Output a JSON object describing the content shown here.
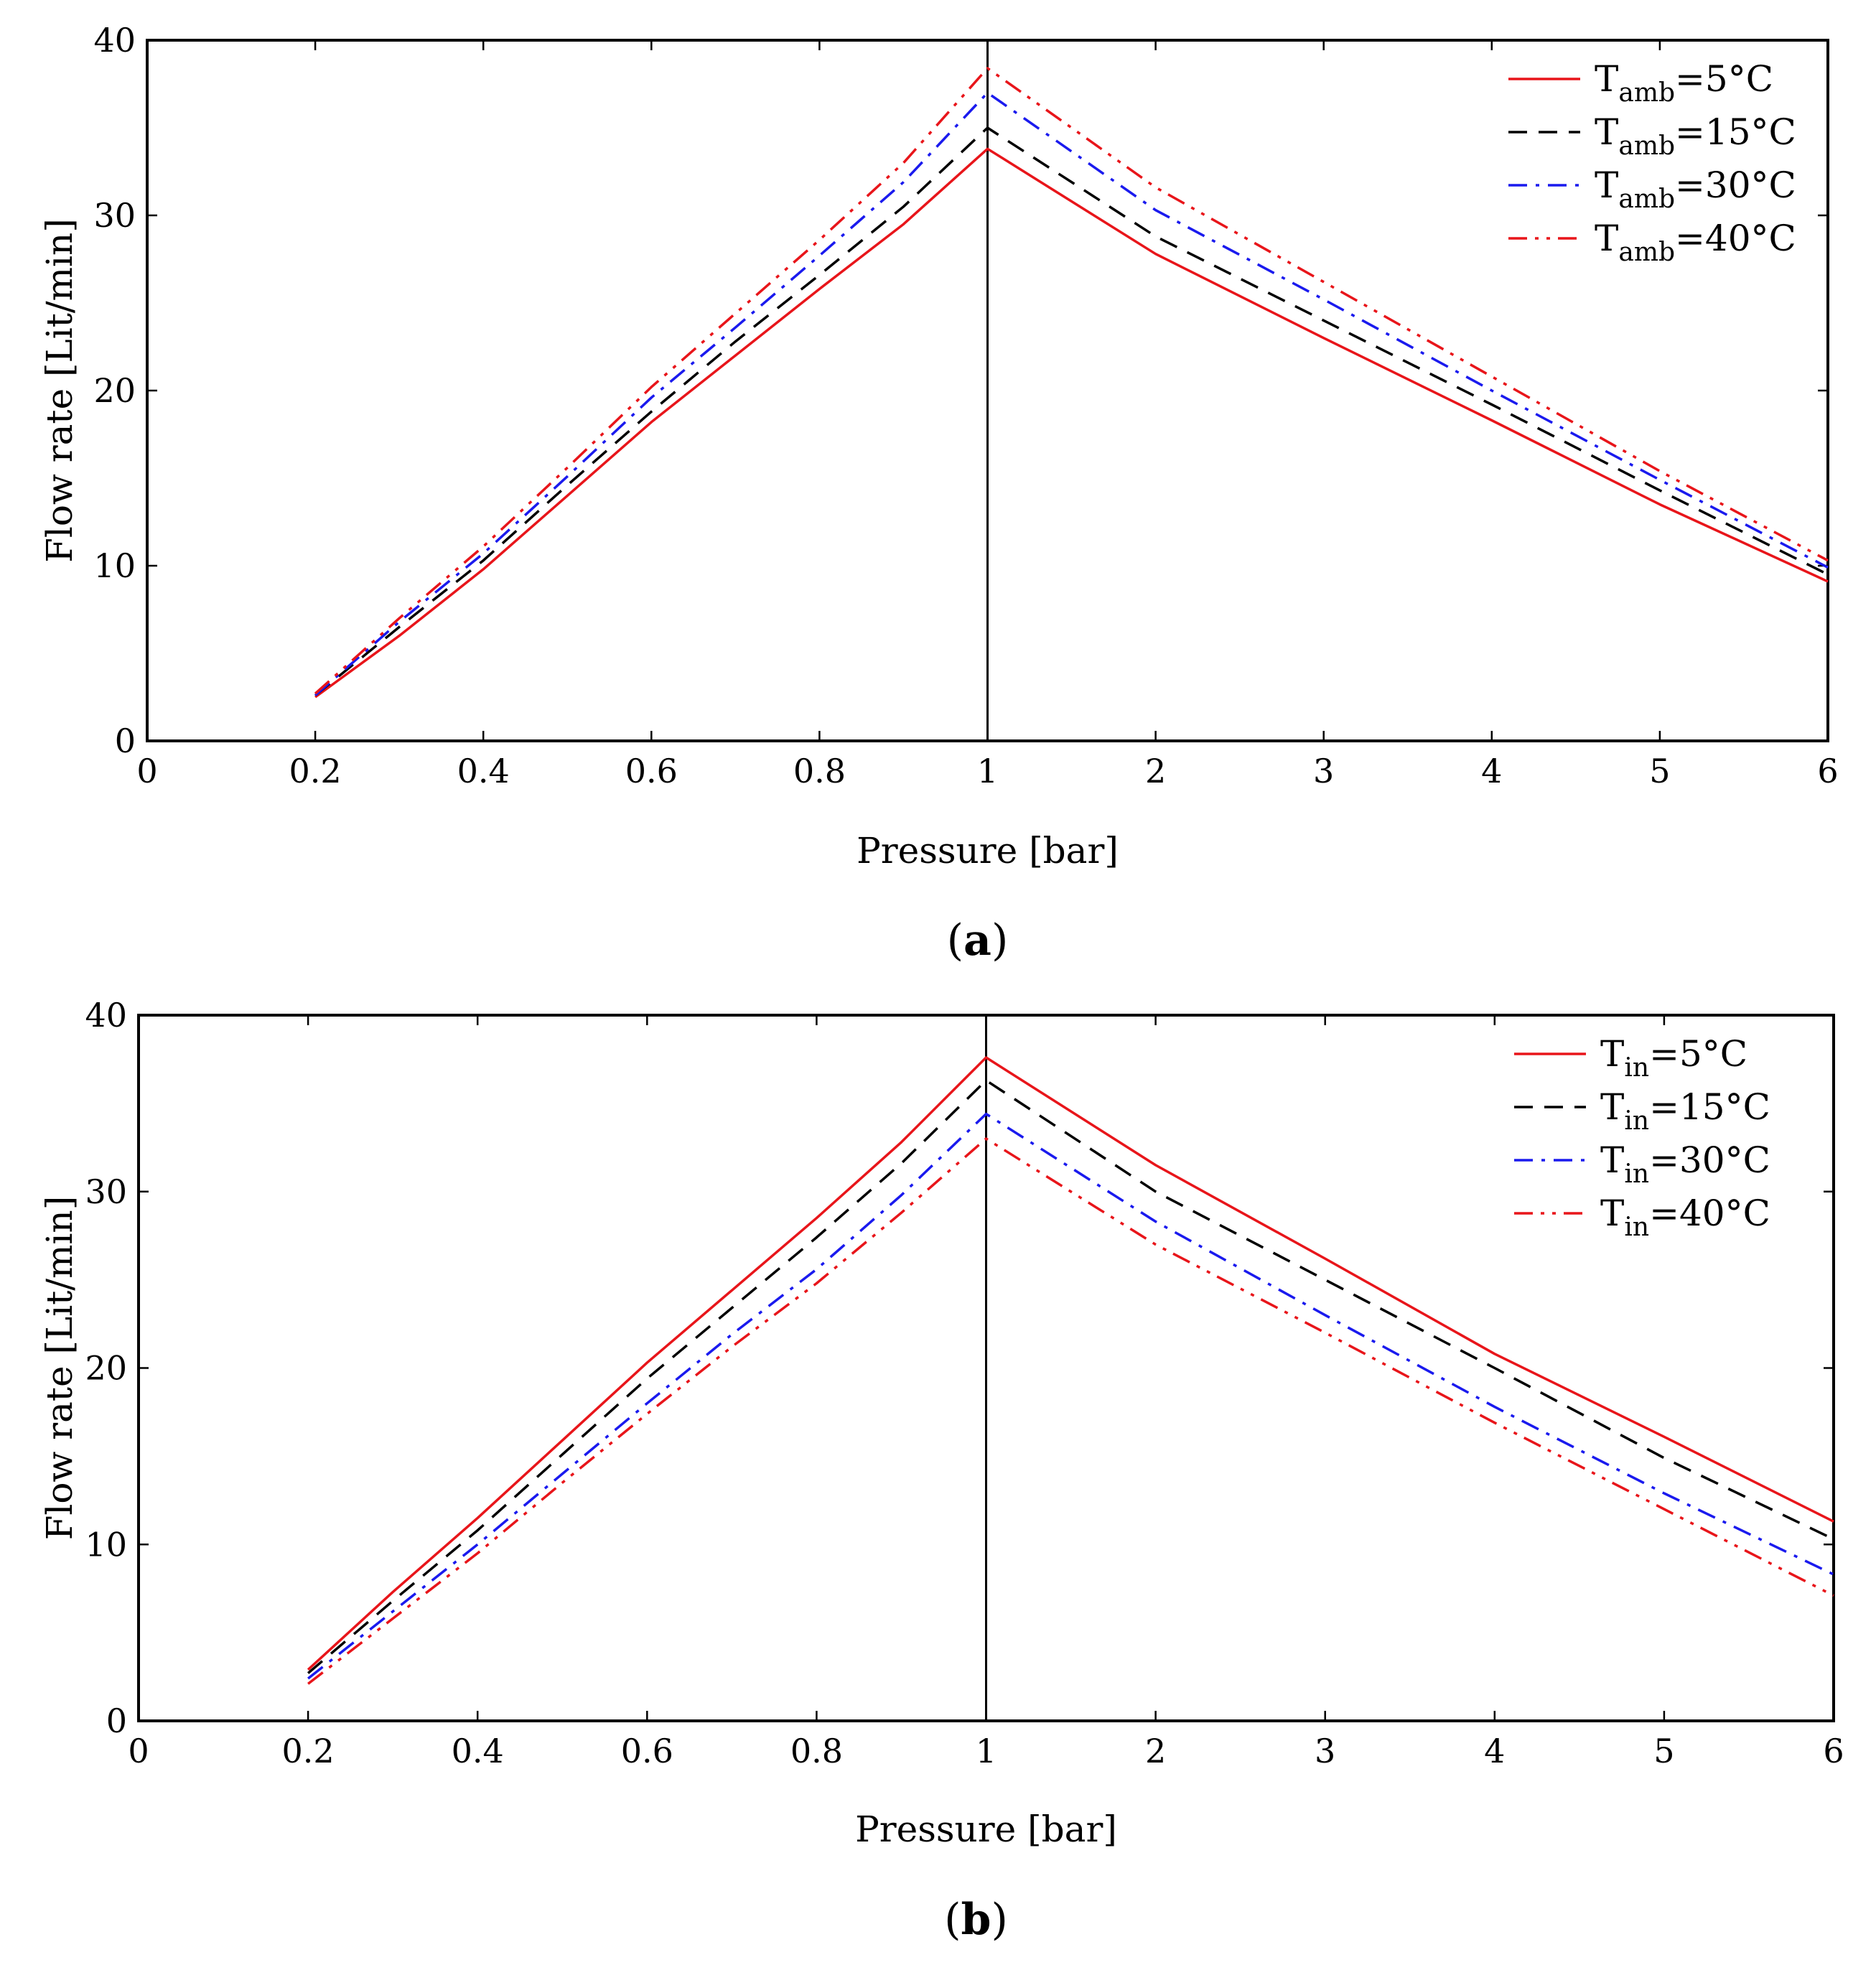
{
  "chart_data": [
    {
      "type": "line",
      "panel_id": "a",
      "caption": {
        "open": "(",
        "letter": "a",
        "close": ")"
      },
      "xlabel": "Pressure [bar]",
      "ylabel": "Flow rate [Lit/min]",
      "ylim": [
        0,
        40
      ],
      "x_axis": "piecewise: 0–1 linear, 1–6 linear",
      "x_ticks": [
        0,
        0.2,
        0.4,
        0.6,
        0.8,
        1,
        2,
        3,
        4,
        5,
        6
      ],
      "x_tick_labels": [
        "0",
        "0.2",
        "0.4",
        "0.6",
        "0.8",
        "1",
        "2",
        "3",
        "4",
        "5",
        "6"
      ],
      "y_ticks": [
        0,
        10,
        20,
        30,
        40
      ],
      "y_tick_labels": [
        "0",
        "10",
        "20",
        "30",
        "40"
      ],
      "vertical_line_at": 1,
      "legend_position": "top-right",
      "x": [
        0.2,
        0.3,
        0.4,
        0.5,
        0.6,
        0.7,
        0.8,
        0.9,
        1,
        2,
        3,
        4,
        5,
        6
      ],
      "series": [
        {
          "name_base": "T",
          "name_sub": "amb",
          "name_suffix": "=5°C",
          "color": "#e8151a",
          "dash": "solid",
          "values": [
            2.5,
            6.0,
            9.8,
            14.0,
            18.2,
            22.0,
            25.8,
            29.5,
            33.8,
            27.8,
            23.0,
            18.3,
            13.5,
            9.1
          ]
        },
        {
          "name_base": "T",
          "name_sub": "amb",
          "name_suffix": "=15°C",
          "color": "#000000",
          "dash": "dashed",
          "values": [
            2.6,
            6.5,
            10.3,
            14.6,
            18.8,
            22.8,
            26.6,
            30.5,
            35.0,
            28.8,
            24.0,
            19.2,
            14.3,
            9.5
          ]
        },
        {
          "name_base": "T",
          "name_sub": "amb",
          "name_suffix": "=30°C",
          "color": "#1a1aee",
          "dash": "dashdot",
          "values": [
            2.6,
            6.8,
            10.7,
            15.1,
            19.6,
            23.6,
            27.7,
            31.9,
            37.0,
            30.3,
            25.2,
            20.0,
            14.9,
            9.9
          ]
        },
        {
          "name_base": "T",
          "name_sub": "amb",
          "name_suffix": "=40°C",
          "color": "#e8151a",
          "dash": "dashdotdot",
          "values": [
            2.7,
            7.0,
            11.1,
            15.6,
            20.2,
            24.4,
            28.6,
            33.0,
            38.4,
            31.6,
            26.2,
            20.8,
            15.4,
            10.3
          ]
        }
      ]
    },
    {
      "type": "line",
      "panel_id": "b",
      "caption": {
        "open": "(",
        "letter": "b",
        "close": ")"
      },
      "xlabel": "Pressure [bar]",
      "ylabel": "Flow rate [Lit/min]",
      "ylim": [
        0,
        40
      ],
      "x_axis": "piecewise: 0–1 linear, 1–6 linear",
      "x_ticks": [
        0,
        0.2,
        0.4,
        0.6,
        0.8,
        1,
        2,
        3,
        4,
        5,
        6
      ],
      "x_tick_labels": [
        "0",
        "0.2",
        "0.4",
        "0.6",
        "0.8",
        "1",
        "2",
        "3",
        "4",
        "5",
        "6"
      ],
      "y_ticks": [
        0,
        10,
        20,
        30,
        40
      ],
      "y_tick_labels": [
        "0",
        "10",
        "20",
        "30",
        "40"
      ],
      "vertical_line_at": 1,
      "legend_position": "top-right",
      "x": [
        0.2,
        0.3,
        0.4,
        0.5,
        0.6,
        0.7,
        0.8,
        0.9,
        1,
        2,
        3,
        4,
        5,
        6
      ],
      "series": [
        {
          "name_base": "T",
          "name_sub": "in",
          "name_suffix": "=5°C",
          "color": "#e8151a",
          "dash": "solid",
          "values": [
            2.9,
            7.3,
            11.5,
            15.9,
            20.3,
            24.4,
            28.5,
            32.8,
            37.6,
            31.5,
            26.2,
            20.8,
            16.1,
            11.3
          ]
        },
        {
          "name_base": "T",
          "name_sub": "in",
          "name_suffix": "=15°C",
          "color": "#000000",
          "dash": "dashed",
          "values": [
            2.7,
            6.8,
            10.8,
            15.1,
            19.4,
            23.4,
            27.4,
            31.6,
            36.3,
            30.0,
            25.0,
            20.0,
            14.9,
            10.3
          ]
        },
        {
          "name_base": "T",
          "name_sub": "in",
          "name_suffix": "=30°C",
          "color": "#1a1aee",
          "dash": "dashdot",
          "values": [
            2.4,
            6.2,
            10.0,
            14.0,
            18.0,
            21.9,
            25.6,
            29.8,
            34.4,
            28.3,
            23.0,
            17.8,
            12.9,
            8.3
          ]
        },
        {
          "name_base": "T",
          "name_sub": "in",
          "name_suffix": "=40°C",
          "color": "#e8151a",
          "dash": "dashdotdot",
          "values": [
            2.1,
            5.8,
            9.5,
            13.5,
            17.4,
            21.2,
            24.8,
            28.8,
            33.0,
            27.0,
            22.0,
            16.9,
            12.0,
            7.1
          ]
        }
      ]
    }
  ]
}
